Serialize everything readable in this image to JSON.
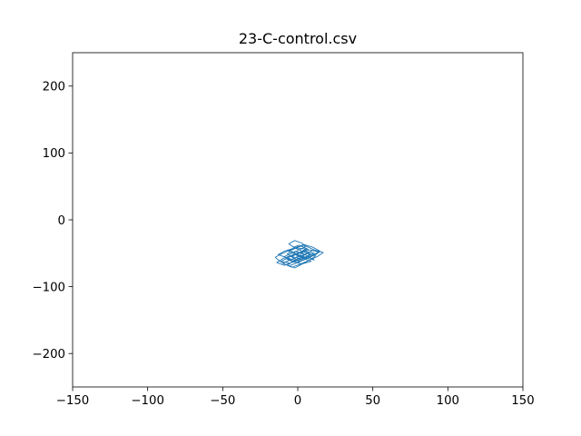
{
  "chart_data": {
    "type": "line",
    "title": "23-C-control.csv",
    "xlabel": "",
    "ylabel": "",
    "xlim": [
      -150,
      150
    ],
    "ylim": [
      -250,
      250
    ],
    "xticks": [
      -150,
      -100,
      -50,
      0,
      50,
      100,
      150
    ],
    "xtick_labels": [
      "−150",
      "−100",
      "−50",
      "0",
      "50",
      "100",
      "150"
    ],
    "yticks": [
      -200,
      -100,
      0,
      100,
      200
    ],
    "ytick_labels": [
      "−200",
      "−100",
      "0",
      "100",
      "200"
    ],
    "grid": false,
    "series": [
      {
        "color": "#1f77b4",
        "x": [
          0,
          3,
          -2,
          5,
          1,
          -4,
          2,
          7,
          -1,
          -6,
          0,
          4,
          9,
          3,
          -3,
          -8,
          -2,
          5,
          11,
          6,
          0,
          -5,
          -11,
          -6,
          1,
          8,
          14,
          10,
          4,
          -3,
          -9,
          -14,
          -10,
          -4,
          2,
          6,
          1,
          -3,
          2,
          8,
          5,
          -1,
          -7,
          -13,
          -9,
          -2,
          4,
          10,
          15,
          12,
          6,
          0,
          -6,
          -10,
          -5,
          1,
          7,
          12,
          8,
          3,
          -2,
          -7,
          -3,
          2,
          6,
          11,
          17,
          13,
          7,
          2,
          -4,
          -8,
          -12,
          -15,
          -11,
          -6,
          -1,
          4,
          9,
          14,
          10,
          5,
          -1,
          -5,
          -9,
          -4,
          1,
          5,
          3,
          -2,
          -6,
          -2,
          3,
          8,
          4,
          -1,
          2,
          7,
          11,
          5,
          0,
          -4,
          -7,
          -3,
          1,
          6,
          3,
          -1,
          0
        ],
        "y": [
          -55,
          -50,
          -47,
          -52,
          -58,
          -55,
          -48,
          -44,
          -42,
          -47,
          -53,
          -58,
          -62,
          -66,
          -63,
          -58,
          -52,
          -47,
          -50,
          -55,
          -60,
          -65,
          -62,
          -56,
          -50,
          -45,
          -48,
          -53,
          -58,
          -63,
          -68,
          -64,
          -58,
          -53,
          -48,
          -43,
          -38,
          -41,
          -46,
          -51,
          -57,
          -61,
          -57,
          -52,
          -47,
          -42,
          -37,
          -41,
          -47,
          -52,
          -58,
          -64,
          -69,
          -65,
          -60,
          -55,
          -50,
          -54,
          -60,
          -66,
          -72,
          -68,
          -62,
          -56,
          -50,
          -45,
          -49,
          -55,
          -61,
          -66,
          -71,
          -67,
          -62,
          -56,
          -51,
          -46,
          -42,
          -38,
          -43,
          -48,
          -54,
          -59,
          -64,
          -60,
          -55,
          -50,
          -45,
          -40,
          -35,
          -31,
          -36,
          -42,
          -47,
          -52,
          -57,
          -53,
          -48,
          -55,
          -60,
          -57,
          -52,
          -47,
          -51,
          -57,
          -62,
          -58,
          -53,
          -56,
          -55
        ]
      }
    ]
  }
}
